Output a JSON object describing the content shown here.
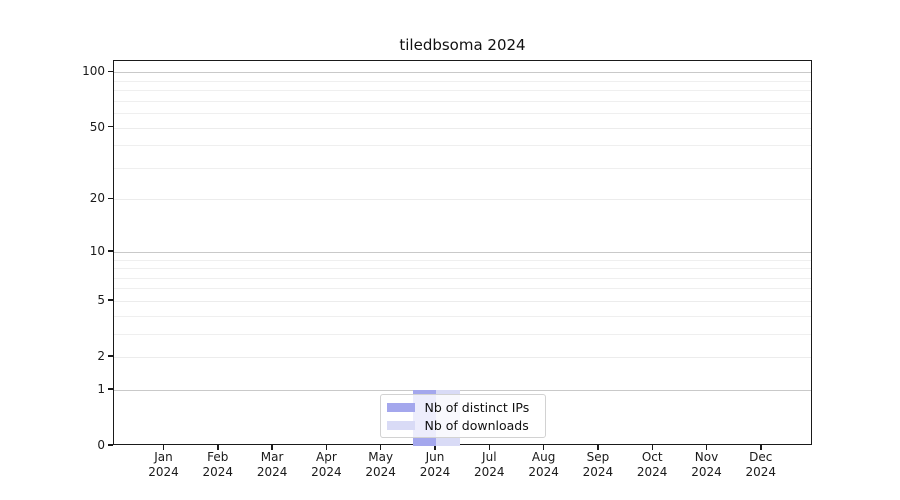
{
  "chart_data": {
    "type": "bar",
    "title": "tiledbsoma 2024",
    "year_label": "2024",
    "categories": [
      "Jan",
      "Feb",
      "Mar",
      "Apr",
      "May",
      "Jun",
      "Jul",
      "Aug",
      "Sep",
      "Oct",
      "Nov",
      "Dec"
    ],
    "x_tick_labels": [
      "Jan 2024",
      "Feb 2024",
      "Mar 2024",
      "Apr 2024",
      "May 2024",
      "Jun 2024",
      "Jul 2024",
      "Aug 2024",
      "Sep 2024",
      "Oct 2024",
      "Nov 2024",
      "Dec 2024"
    ],
    "series": [
      {
        "name": "Nb of distinct IPs",
        "color": "#a4a7ed",
        "values": [
          0,
          0,
          0,
          0,
          0,
          1,
          0,
          0,
          0,
          0,
          0,
          0
        ]
      },
      {
        "name": "Nb of downloads",
        "color": "#d9dbf6",
        "values": [
          0,
          0,
          0,
          0,
          0,
          1,
          0,
          0,
          0,
          0,
          0,
          0
        ]
      }
    ],
    "y_scale": "log1p",
    "ylim": [
      0,
      115
    ],
    "y_ticks": [
      0,
      1,
      2,
      5,
      10,
      20,
      50,
      100
    ],
    "y_major_gridlines": [
      1,
      10,
      100
    ],
    "y_faint_gridlines": [
      2,
      5,
      20,
      50
    ],
    "y_minor_gridlines": [
      3,
      4,
      6,
      7,
      8,
      9,
      30,
      40,
      60,
      70,
      80,
      90
    ],
    "xlabel": "",
    "ylabel": "",
    "grid": "horizontal",
    "legend_position": "lower center"
  },
  "colors": {
    "background": "#ffffff",
    "spine": "#1a1a1a",
    "text": "#1a1a1a",
    "grid_major": "#c9c9c9",
    "grid_minor": "#efefef",
    "legend_border": "#d2d2d2"
  }
}
